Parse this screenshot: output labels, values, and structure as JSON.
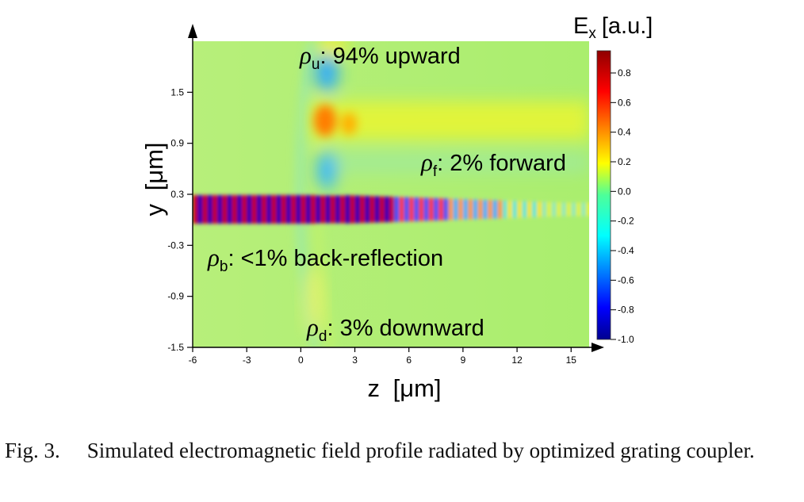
{
  "figure": {
    "plot": {
      "x_axis": {
        "label_letter": "z",
        "label_unit": "[μm]",
        "ticks": [
          "-6",
          "-3",
          "0",
          "3",
          "6",
          "9",
          "12",
          "15"
        ],
        "range": [
          -6,
          16
        ]
      },
      "y_axis": {
        "label_letter": "y",
        "label_unit": "[μm]",
        "ticks": [
          "1.5",
          "0.9",
          "0.3",
          "-0.3",
          "-0.9",
          "-1.5"
        ],
        "range": [
          -1.5,
          2.1
        ]
      },
      "colormap": "jet",
      "colorbar": {
        "title_main": "E",
        "title_sub": "x",
        "title_unit": "[a.u.]",
        "ticks": [
          "0.8",
          "0.6",
          "0.4",
          "0.2",
          "0.0",
          "-0.2",
          "-0.4",
          "-0.6",
          "-0.8",
          "-1.0"
        ],
        "range": [
          -1.0,
          0.95
        ]
      }
    },
    "annotations": [
      {
        "id": "upward",
        "symbol": "ρ",
        "sub": "u",
        "text": ": 94% upward"
      },
      {
        "id": "forward",
        "symbol": "ρ",
        "sub": "f",
        "text": ": 2% forward"
      },
      {
        "id": "back",
        "symbol": "ρ",
        "sub": "b",
        "text": ": <1% back-reflection"
      },
      {
        "id": "downward",
        "symbol": "ρ",
        "sub": "d",
        "text": ": 3% downward"
      }
    ]
  },
  "caption": {
    "label": "Fig. 3.",
    "text": "Simulated electromagnetic field profile radiated by optimized grating coupler."
  }
}
